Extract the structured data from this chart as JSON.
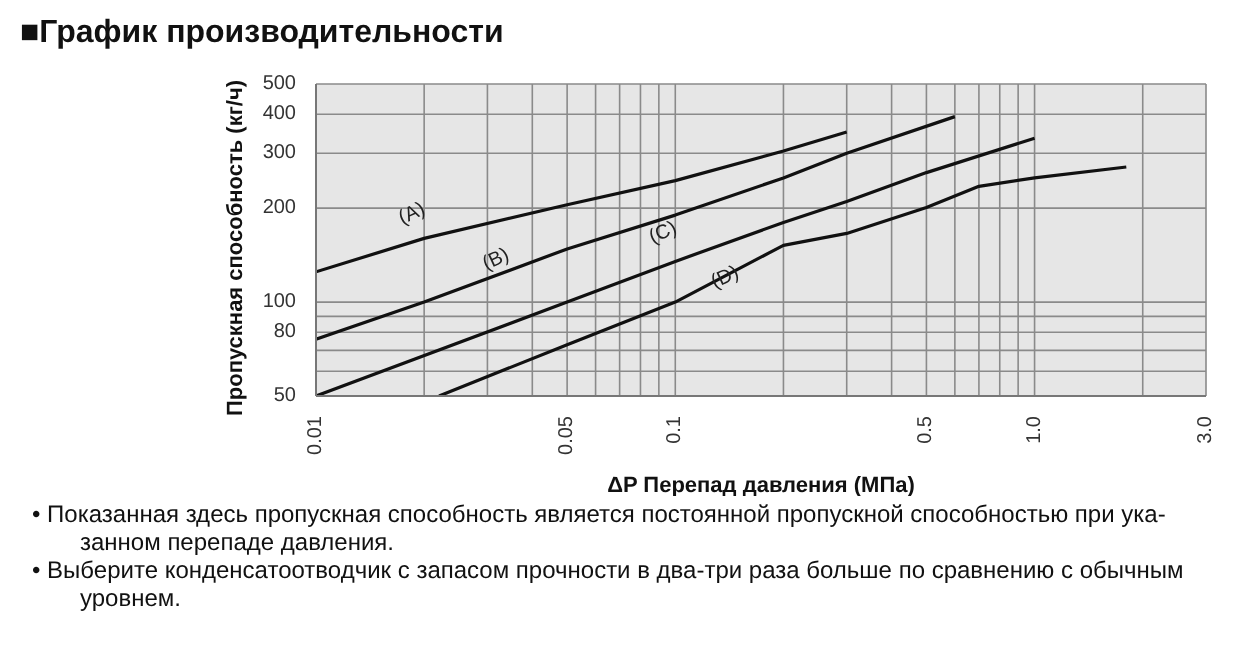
{
  "chart_data": {
    "type": "line",
    "title": "■График производительности",
    "xlabel": "ΔP Перепад давления (МПа)",
    "ylabel": "Пропускная способность (кг/ч)",
    "log": "xy",
    "grid": true,
    "legend": false,
    "marker": "none",
    "line_style": "solid",
    "xlim": [
      0.01,
      3.0
    ],
    "ylim": [
      50,
      500
    ],
    "xticks": [
      0.01,
      {
        "value": 0.02,
        "label": null
      },
      {
        "value": 0.03,
        "label": null
      },
      {
        "value": 0.04,
        "label": null
      },
      0.05,
      {
        "value": 0.06,
        "label": null
      },
      {
        "value": 0.07,
        "label": null
      },
      {
        "value": 0.08,
        "label": null
      },
      {
        "value": 0.09,
        "label": null
      },
      0.1,
      {
        "value": 0.2,
        "label": null
      },
      {
        "value": 0.3,
        "label": null
      },
      {
        "value": 0.4,
        "label": null
      },
      0.5,
      {
        "value": 0.6,
        "label": null
      },
      {
        "value": 0.7,
        "label": null
      },
      {
        "value": 0.8,
        "label": null
      },
      {
        "value": 0.9,
        "label": null
      },
      {
        "value": 1,
        "label": "1.0"
      },
      {
        "value": 2,
        "label": null
      },
      {
        "value": 3,
        "label": "3.0"
      }
    ],
    "yticks": [
      50,
      {
        "value": 60,
        "label": null
      },
      {
        "value": 70,
        "label": null
      },
      80,
      {
        "value": 90,
        "label": null
      },
      100,
      200,
      300,
      400,
      500
    ],
    "series": [
      {
        "name": "(A)",
        "color": "#111111",
        "x": [
          0.01,
          0.02,
          0.05,
          0.1,
          0.2,
          0.3
        ],
        "values": [
          125,
          160,
          205,
          245,
          305,
          351
        ]
      },
      {
        "name": "(B)",
        "color": "#111111",
        "x": [
          0.01,
          0.02,
          0.05,
          0.1,
          0.2,
          0.3,
          0.6
        ],
        "values": [
          76,
          100,
          148,
          190,
          250,
          300,
          393
        ]
      },
      {
        "name": "(C)",
        "color": "#111111",
        "x": [
          0.01,
          0.05,
          0.1,
          0.2,
          0.3,
          0.5,
          1.0
        ],
        "values": [
          50,
          100,
          135,
          180,
          210,
          260,
          335
        ]
      },
      {
        "name": "(D)",
        "color": "#111111",
        "x": [
          0.022,
          0.05,
          0.1,
          0.2,
          0.3,
          0.5,
          0.7,
          1.0,
          1.8
        ],
        "values": [
          50,
          73,
          100,
          152,
          166,
          201,
          235,
          250,
          271
        ]
      }
    ],
    "annotations": [
      "• Показанная здесь пропускная способность является постоянной пропускной способностью при ука-занном перепаде давления.",
      "• Выберите конденсатоотводчик с запасом прочности в два-три раза больше по сравнению с обычным уровнем."
    ]
  }
}
